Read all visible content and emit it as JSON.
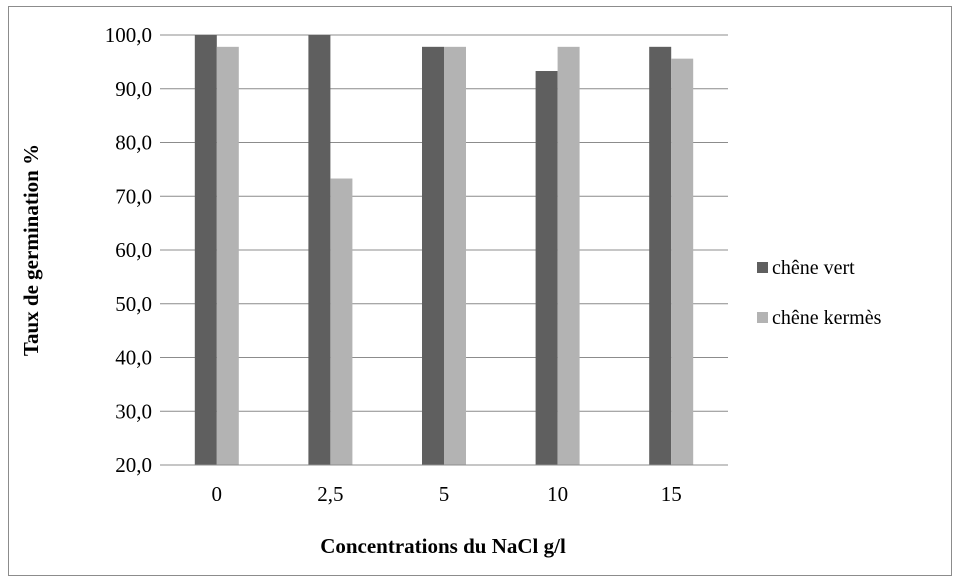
{
  "chart_data": {
    "type": "bar",
    "title": "",
    "xlabel": "Concentrations du NaCl g/l",
    "ylabel": "Taux de germination %",
    "categories": [
      "0",
      "2,5",
      "5",
      "10",
      "15"
    ],
    "series": [
      {
        "name": "chêne vert",
        "color": "#5f5f5f",
        "values": [
          100.0,
          100.0,
          97.8,
          93.3,
          97.8
        ]
      },
      {
        "name": "chêne kermès",
        "color": "#b3b3b3",
        "values": [
          97.8,
          73.3,
          97.8,
          97.8,
          95.6
        ]
      }
    ],
    "ylim": [
      20,
      100
    ],
    "yticks": [
      "20,0",
      "30,0",
      "40,0",
      "50,0",
      "60,0",
      "70,0",
      "80,0",
      "90,0",
      "100,0"
    ],
    "ytick_values": [
      20,
      30,
      40,
      50,
      60,
      70,
      80,
      90,
      100
    ],
    "grid": true,
    "legend": "right"
  }
}
